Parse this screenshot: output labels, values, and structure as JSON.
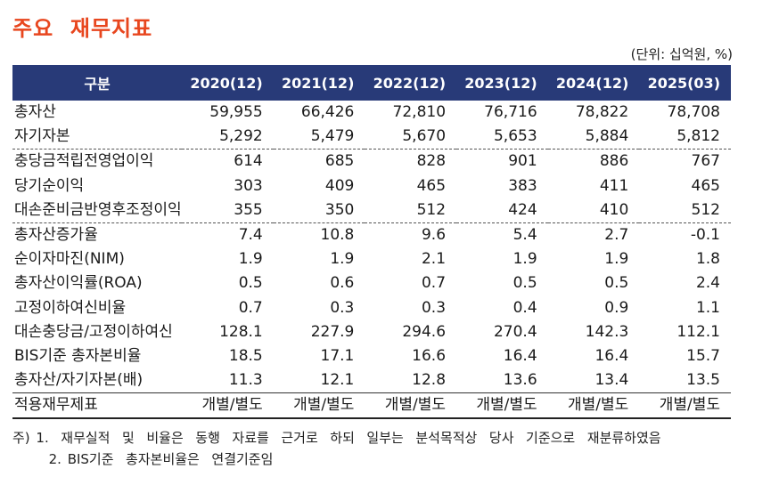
{
  "title": "주요  재무지표",
  "unit_note": "(단위:  십억원, %)",
  "table": {
    "label_header": "구분",
    "columns": [
      "2020(12)",
      "2021(12)",
      "2022(12)",
      "2023(12)",
      "2024(12)",
      "2025(03)"
    ],
    "rows": [
      {
        "label": "총자산",
        "values": [
          "59,955",
          "66,426",
          "72,810",
          "76,716",
          "78,822",
          "78,708"
        ]
      },
      {
        "label": "자기자본",
        "values": [
          "5,292",
          "5,479",
          "5,670",
          "5,653",
          "5,884",
          "5,812"
        ]
      },
      {
        "label": "충당금적립전영업이익",
        "values": [
          "614",
          "685",
          "828",
          "901",
          "886",
          "767"
        ]
      },
      {
        "label": "당기순이익",
        "values": [
          "303",
          "409",
          "465",
          "383",
          "411",
          "465"
        ]
      },
      {
        "label": "대손준비금반영후조정이익",
        "values": [
          "355",
          "350",
          "512",
          "424",
          "410",
          "512"
        ]
      },
      {
        "label": "총자산증가율",
        "values": [
          "7.4",
          "10.8",
          "9.6",
          "5.4",
          "2.7",
          "-0.1"
        ]
      },
      {
        "label": "순이자마진(NIM)",
        "values": [
          "1.9",
          "1.9",
          "2.1",
          "1.9",
          "1.9",
          "1.8"
        ]
      },
      {
        "label": "총자산이익률(ROA)",
        "values": [
          "0.5",
          "0.6",
          "0.7",
          "0.5",
          "0.5",
          "2.4"
        ]
      },
      {
        "label": "고정이하여신비율",
        "values": [
          "0.7",
          "0.3",
          "0.3",
          "0.4",
          "0.9",
          "1.1"
        ]
      },
      {
        "label": "대손충당금/고정이하여신",
        "values": [
          "128.1",
          "227.9",
          "294.6",
          "270.4",
          "142.3",
          "112.1"
        ]
      },
      {
        "label": "BIS기준  총자본비율",
        "values": [
          "18.5",
          "17.1",
          "16.6",
          "16.4",
          "16.4",
          "15.7"
        ]
      },
      {
        "label": "총자산/자기자본(배)",
        "values": [
          "11.3",
          "12.1",
          "12.8",
          "13.6",
          "13.4",
          "13.5"
        ]
      },
      {
        "label": "적용재무제표",
        "values": [
          "개별/별도",
          "개별/별도",
          "개별/별도",
          "개별/별도",
          "개별/별도",
          "개별/별도"
        ]
      }
    ]
  },
  "notes": [
    "주) 1.  재무실적  및  비율은  동행  자료를  근거로  하되  일부는  분석목적상  당사  기준으로  재분류하였음",
    "      2. BIS기준  총자본비율은  연결기준임"
  ]
}
